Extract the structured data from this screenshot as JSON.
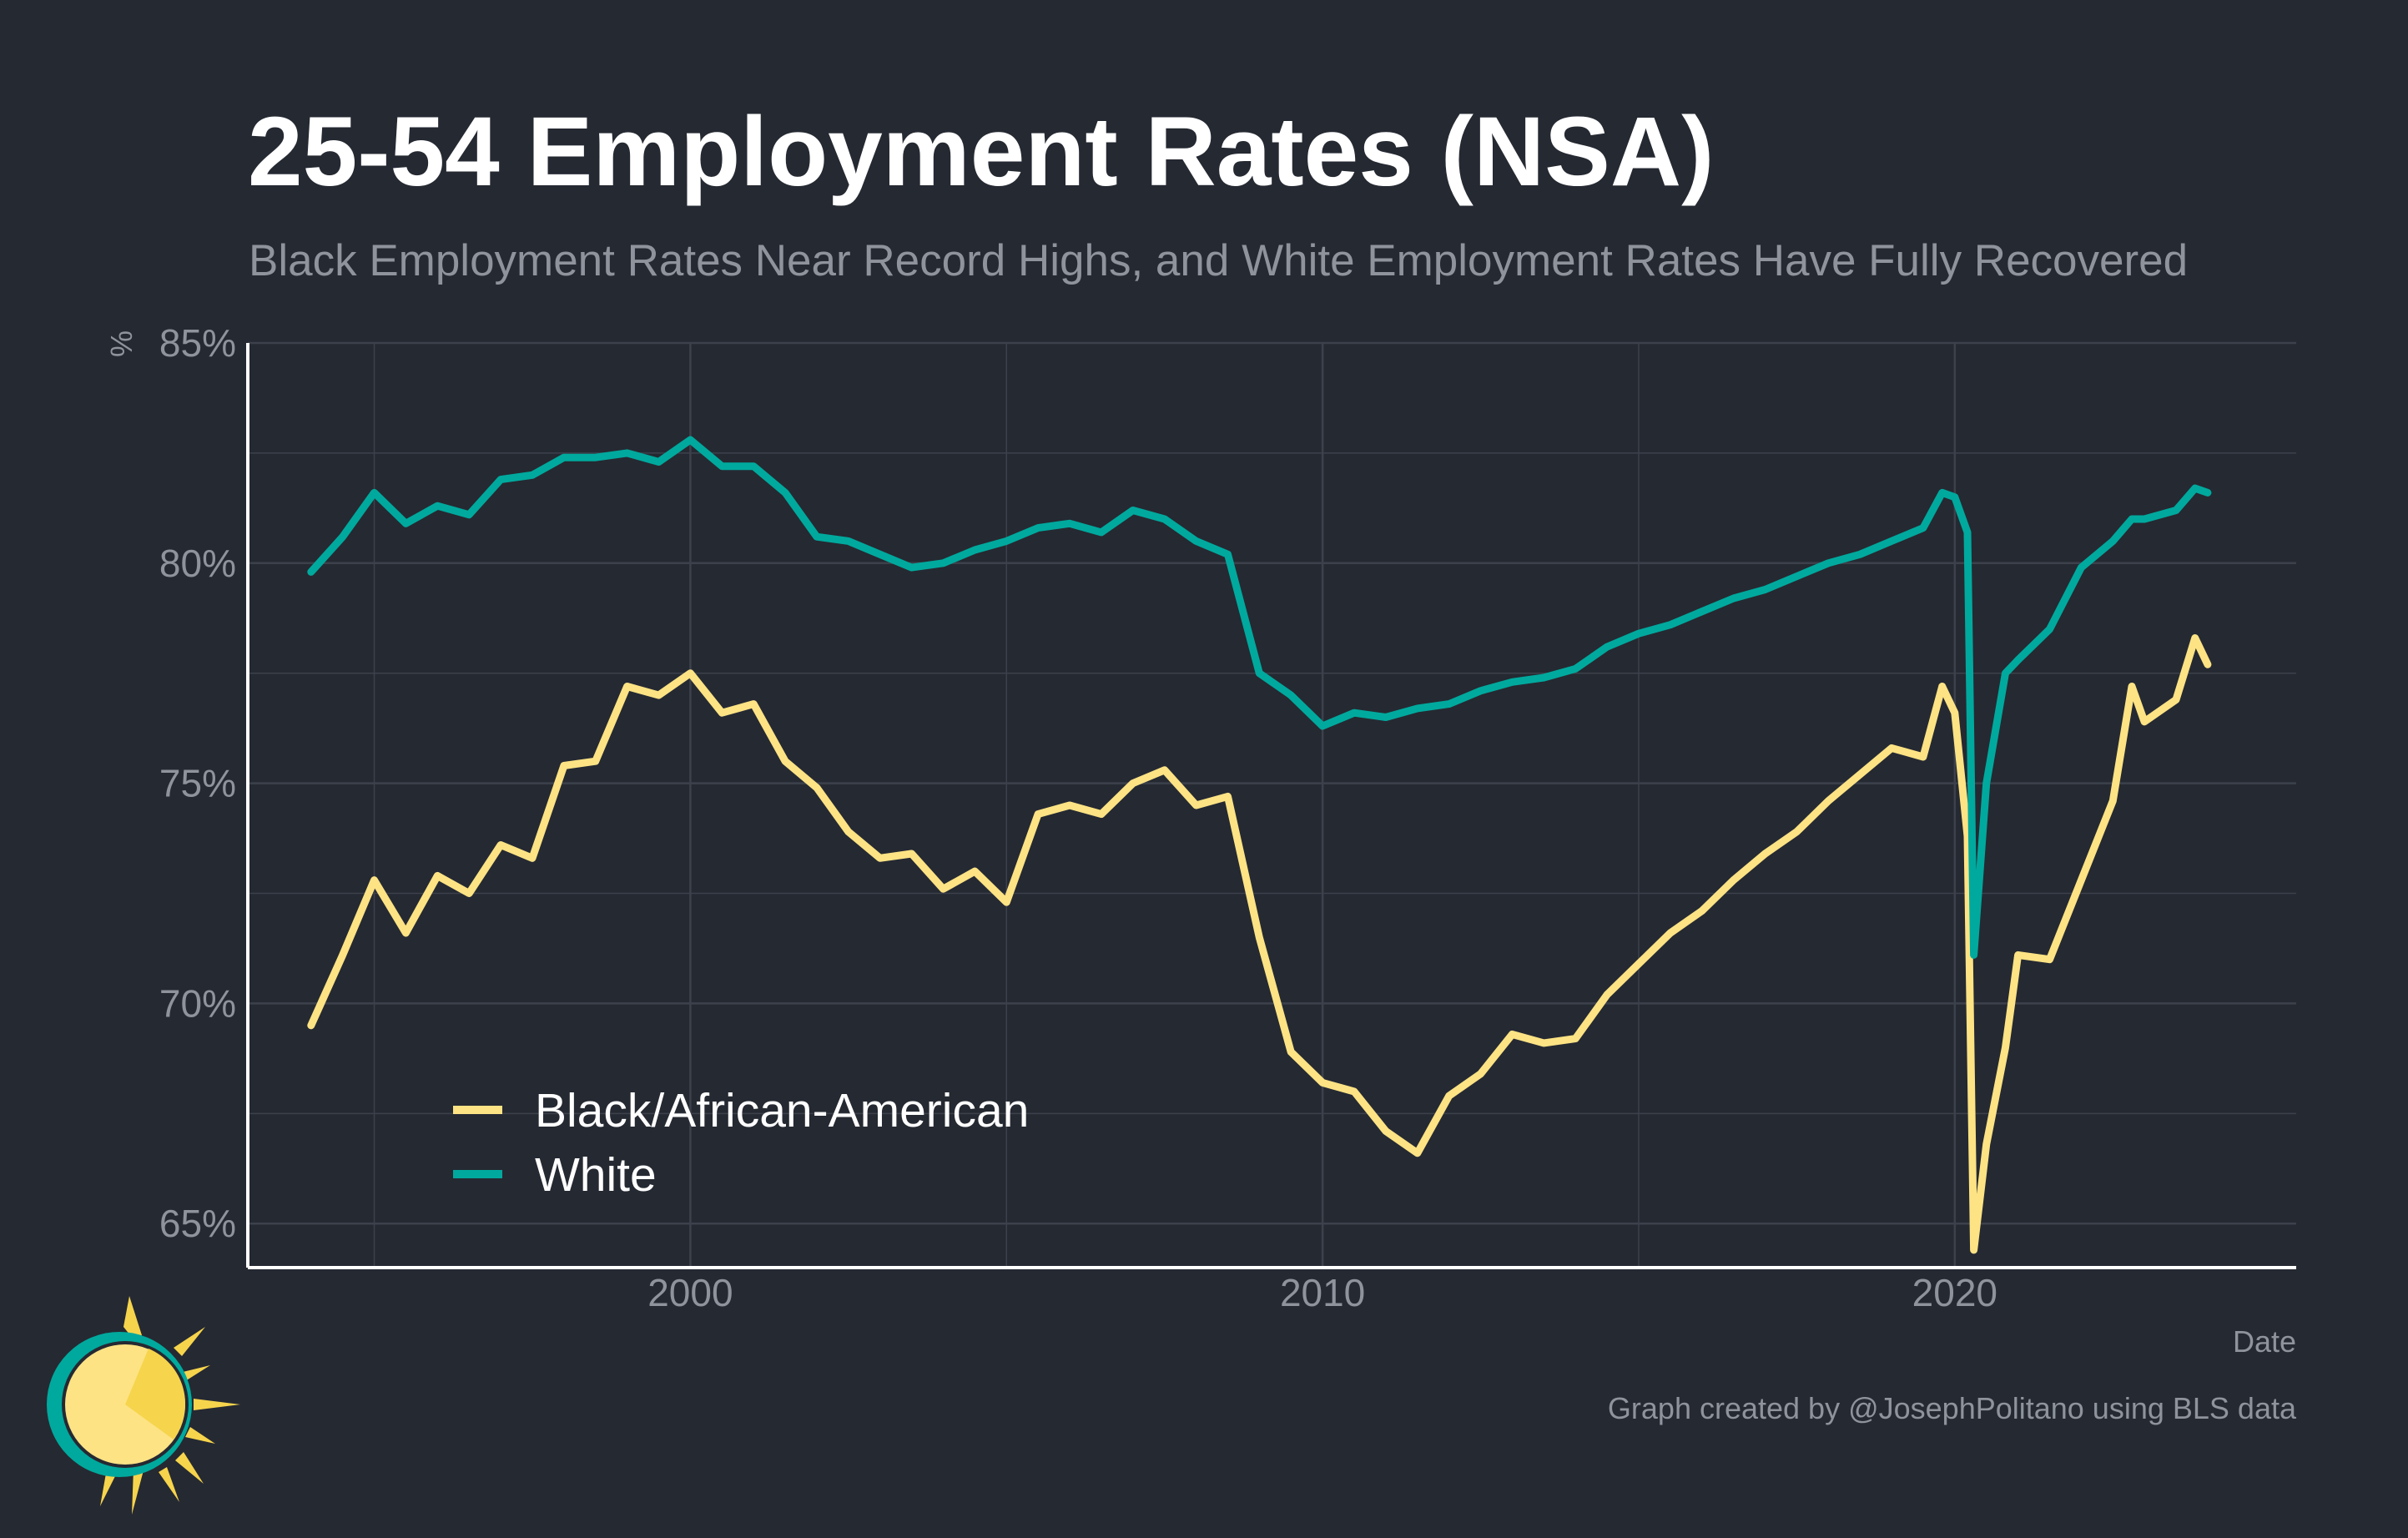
{
  "colors": {
    "background": "#252932",
    "black_series": "#fde384",
    "white_series": "#00a99d",
    "grid": "#3c414b",
    "axis": "#ffffff",
    "muted_text": "#8e939c"
  },
  "logo": {
    "name": "sun-logo-icon"
  },
  "chart_data": {
    "type": "line",
    "title": "25-54 Employment Rates (NSA)",
    "subtitle": "Black Employment Rates Near Record Highs, and White Employment Rates Have Fully Recovered",
    "xlabel": "Date",
    "ylabel": "%",
    "caption": "Graph created by @JosephPolitano using BLS data",
    "x_ticks": [
      2000,
      2010,
      2020
    ],
    "y_ticks": [
      65,
      70,
      75,
      80,
      85
    ],
    "y_tick_labels": [
      "65%",
      "70%",
      "75%",
      "80%",
      "85%"
    ],
    "xlim": [
      1993.0,
      2025.4
    ],
    "ylim": [
      64.0,
      85.0
    ],
    "grid": true,
    "legend_position": "bottom-left",
    "series": [
      {
        "name": "Black/African-American",
        "color": "#fde384",
        "points": [
          [
            1994.0,
            69.5
          ],
          [
            1994.5,
            71.1
          ],
          [
            1995.0,
            72.8
          ],
          [
            1995.5,
            71.6
          ],
          [
            1996.0,
            72.9
          ],
          [
            1996.5,
            72.5
          ],
          [
            1997.0,
            73.6
          ],
          [
            1997.5,
            73.3
          ],
          [
            1998.0,
            75.4
          ],
          [
            1998.5,
            75.5
          ],
          [
            1999.0,
            77.2
          ],
          [
            1999.5,
            77.0
          ],
          [
            2000.0,
            77.5
          ],
          [
            2000.5,
            76.6
          ],
          [
            2001.0,
            76.8
          ],
          [
            2001.5,
            75.5
          ],
          [
            2002.0,
            74.9
          ],
          [
            2002.5,
            73.9
          ],
          [
            2003.0,
            73.3
          ],
          [
            2003.5,
            73.4
          ],
          [
            2004.0,
            72.6
          ],
          [
            2004.5,
            73.0
          ],
          [
            2005.0,
            72.3
          ],
          [
            2005.5,
            74.3
          ],
          [
            2006.0,
            74.5
          ],
          [
            2006.5,
            74.3
          ],
          [
            2007.0,
            75.0
          ],
          [
            2007.5,
            75.3
          ],
          [
            2008.0,
            74.5
          ],
          [
            2008.5,
            74.7
          ],
          [
            2009.0,
            71.5
          ],
          [
            2009.5,
            68.9
          ],
          [
            2010.0,
            68.2
          ],
          [
            2010.5,
            68.0
          ],
          [
            2011.0,
            67.1
          ],
          [
            2011.5,
            66.6
          ],
          [
            2012.0,
            67.9
          ],
          [
            2012.5,
            68.4
          ],
          [
            2013.0,
            69.3
          ],
          [
            2013.5,
            69.1
          ],
          [
            2014.0,
            69.2
          ],
          [
            2014.5,
            70.2
          ],
          [
            2015.0,
            70.9
          ],
          [
            2015.5,
            71.6
          ],
          [
            2016.0,
            72.1
          ],
          [
            2016.5,
            72.8
          ],
          [
            2017.0,
            73.4
          ],
          [
            2017.5,
            73.9
          ],
          [
            2018.0,
            74.6
          ],
          [
            2018.5,
            75.2
          ],
          [
            2019.0,
            75.8
          ],
          [
            2019.5,
            75.6
          ],
          [
            2019.8,
            77.2
          ],
          [
            2020.0,
            76.6
          ],
          [
            2020.2,
            73.8
          ],
          [
            2020.3,
            64.4
          ],
          [
            2020.5,
            66.8
          ],
          [
            2020.8,
            69.0
          ],
          [
            2021.0,
            71.1
          ],
          [
            2021.5,
            71.0
          ],
          [
            2022.0,
            72.8
          ],
          [
            2022.5,
            74.6
          ],
          [
            2022.8,
            77.2
          ],
          [
            2023.0,
            76.4
          ],
          [
            2023.5,
            76.9
          ],
          [
            2023.8,
            78.3
          ],
          [
            2024.0,
            77.7
          ]
        ]
      },
      {
        "name": "White",
        "color": "#00a99d",
        "points": [
          [
            1994.0,
            79.8
          ],
          [
            1994.5,
            80.6
          ],
          [
            1995.0,
            81.6
          ],
          [
            1995.5,
            80.9
          ],
          [
            1996.0,
            81.3
          ],
          [
            1996.5,
            81.1
          ],
          [
            1997.0,
            81.9
          ],
          [
            1997.5,
            82.0
          ],
          [
            1998.0,
            82.4
          ],
          [
            1998.5,
            82.4
          ],
          [
            1999.0,
            82.5
          ],
          [
            1999.5,
            82.3
          ],
          [
            2000.0,
            82.8
          ],
          [
            2000.5,
            82.2
          ],
          [
            2001.0,
            82.2
          ],
          [
            2001.5,
            81.6
          ],
          [
            2002.0,
            80.6
          ],
          [
            2002.5,
            80.5
          ],
          [
            2003.0,
            80.2
          ],
          [
            2003.5,
            79.9
          ],
          [
            2004.0,
            80.0
          ],
          [
            2004.5,
            80.3
          ],
          [
            2005.0,
            80.5
          ],
          [
            2005.5,
            80.8
          ],
          [
            2006.0,
            80.9
          ],
          [
            2006.5,
            80.7
          ],
          [
            2007.0,
            81.2
          ],
          [
            2007.5,
            81.0
          ],
          [
            2008.0,
            80.5
          ],
          [
            2008.5,
            80.2
          ],
          [
            2009.0,
            77.5
          ],
          [
            2009.5,
            77.0
          ],
          [
            2010.0,
            76.3
          ],
          [
            2010.5,
            76.6
          ],
          [
            2011.0,
            76.5
          ],
          [
            2011.5,
            76.7
          ],
          [
            2012.0,
            76.8
          ],
          [
            2012.5,
            77.1
          ],
          [
            2013.0,
            77.3
          ],
          [
            2013.5,
            77.4
          ],
          [
            2014.0,
            77.6
          ],
          [
            2014.5,
            78.1
          ],
          [
            2015.0,
            78.4
          ],
          [
            2015.5,
            78.6
          ],
          [
            2016.0,
            78.9
          ],
          [
            2016.5,
            79.2
          ],
          [
            2017.0,
            79.4
          ],
          [
            2017.5,
            79.7
          ],
          [
            2018.0,
            80.0
          ],
          [
            2018.5,
            80.2
          ],
          [
            2019.0,
            80.5
          ],
          [
            2019.5,
            80.8
          ],
          [
            2019.8,
            81.6
          ],
          [
            2020.0,
            81.5
          ],
          [
            2020.2,
            80.7
          ],
          [
            2020.3,
            71.1
          ],
          [
            2020.5,
            75.0
          ],
          [
            2020.8,
            77.5
          ],
          [
            2021.0,
            77.8
          ],
          [
            2021.5,
            78.5
          ],
          [
            2022.0,
            79.9
          ],
          [
            2022.5,
            80.5
          ],
          [
            2022.8,
            81.0
          ],
          [
            2023.0,
            81.0
          ],
          [
            2023.5,
            81.2
          ],
          [
            2023.8,
            81.7
          ],
          [
            2024.0,
            81.6
          ]
        ]
      }
    ]
  }
}
